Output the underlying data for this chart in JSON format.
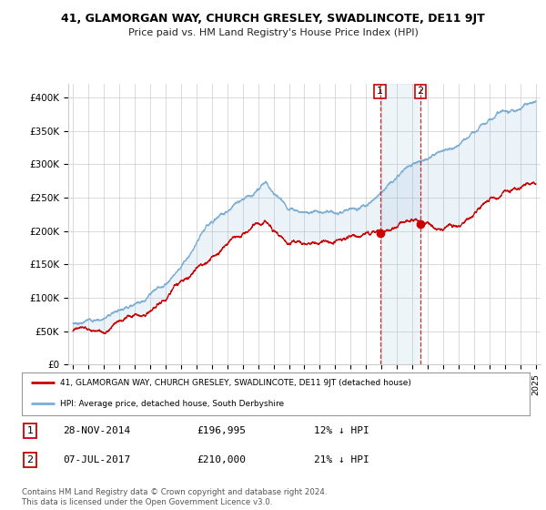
{
  "title": "41, GLAMORGAN WAY, CHURCH GRESLEY, SWADLINCOTE, DE11 9JT",
  "subtitle": "Price paid vs. HM Land Registry's House Price Index (HPI)",
  "hpi_color": "#7aadd4",
  "price_color": "#cc0000",
  "background_color": "#ffffff",
  "grid_color": "#cccccc",
  "ylim": [
    0,
    420000
  ],
  "yticks": [
    0,
    50000,
    100000,
    150000,
    200000,
    250000,
    300000,
    350000,
    400000
  ],
  "ytick_labels": [
    "£0",
    "£50K",
    "£100K",
    "£150K",
    "£200K",
    "£250K",
    "£300K",
    "£350K",
    "£400K"
  ],
  "legend_line1": "41, GLAMORGAN WAY, CHURCH GRESLEY, SWADLINCOTE, DE11 9JT (detached house)",
  "legend_line2": "HPI: Average price, detached house, South Derbyshire",
  "footnote": "Contains HM Land Registry data © Crown copyright and database right 2024.\nThis data is licensed under the Open Government Licence v3.0.",
  "table_rows": [
    {
      "num": "1",
      "date": "28-NOV-2014",
      "price": "£196,995",
      "pct": "12% ↓ HPI"
    },
    {
      "num": "2",
      "date": "07-JUL-2017",
      "price": "£210,000",
      "pct": "21% ↓ HPI"
    }
  ],
  "t1": 2014.91,
  "t2": 2017.52,
  "v1": 196995,
  "v2": 210000
}
